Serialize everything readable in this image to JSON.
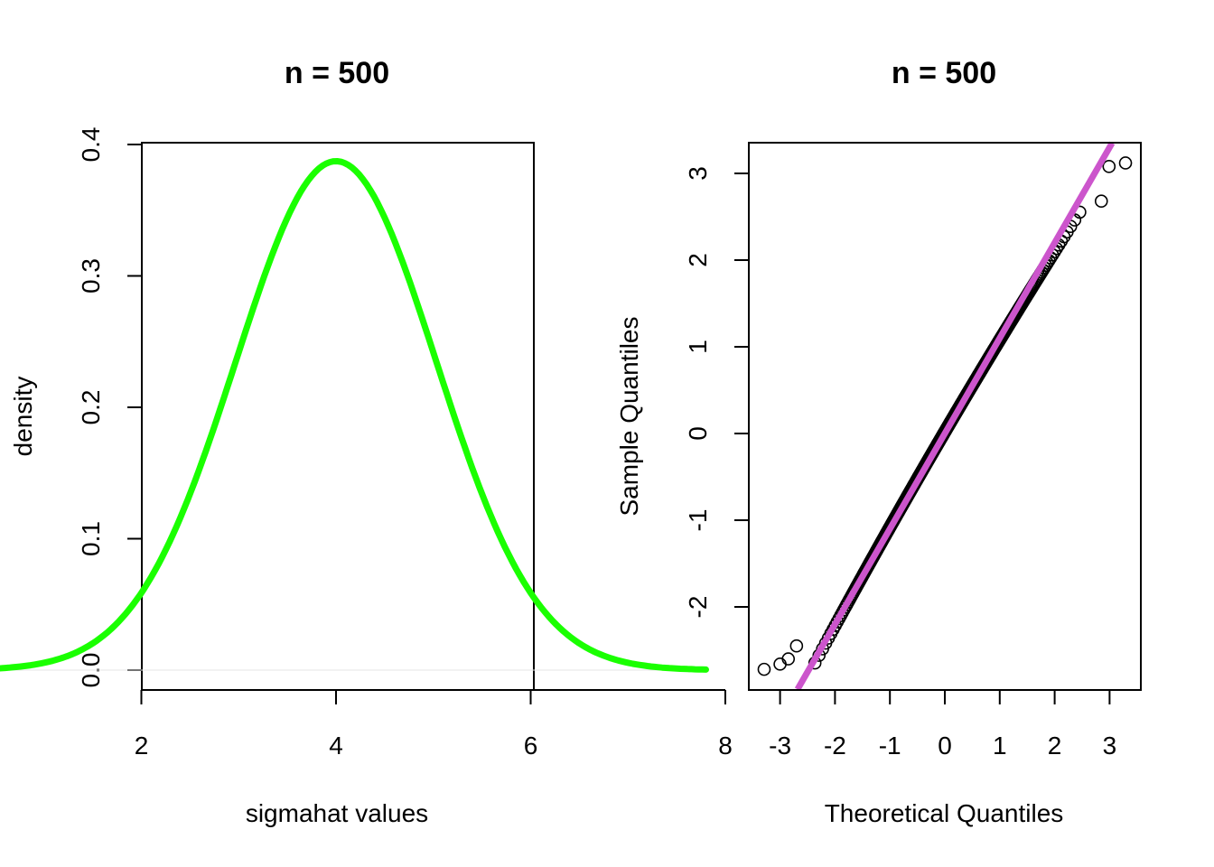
{
  "chart_data": [
    {
      "type": "line",
      "title": "n = 500",
      "xlabel": "sigmahat values",
      "ylabel": "density",
      "xlim": [
        0,
        8
      ],
      "ylim": [
        0,
        0.4
      ],
      "xticks": [
        "2",
        "4",
        "6",
        "8"
      ],
      "yticks": [
        "0.0",
        "0.1",
        "0.2",
        "0.3",
        "0.4"
      ],
      "curve": {
        "distribution": "normal",
        "mean": 4.0,
        "sd": 1.03,
        "x_from": 0.3,
        "x_to": 7.8,
        "color": "#1aff00"
      }
    },
    {
      "type": "scatter",
      "title": "n = 500",
      "xlabel": "Theoretical Quantiles",
      "ylabel": "Sample Quantiles",
      "xlim": [
        -3.5,
        3.7
      ],
      "ylim": [
        -2.95,
        3.35
      ],
      "xticks": [
        "-3",
        "-2",
        "-1",
        "0",
        "1",
        "2",
        "3"
      ],
      "yticks": [
        "-2",
        "-1",
        "0",
        "1",
        "2",
        "3"
      ],
      "n_points": 500,
      "points_extremes": [
        {
          "x": -3.29,
          "y": -2.72
        },
        {
          "x": -3.0,
          "y": -2.66
        },
        {
          "x": -2.85,
          "y": -2.6
        },
        {
          "x": -2.7,
          "y": -2.45
        },
        {
          "x": 2.85,
          "y": 2.68
        },
        {
          "x": 2.99,
          "y": 3.08
        },
        {
          "x": 3.29,
          "y": 3.12
        }
      ],
      "qq_line": {
        "intercept": 0.0,
        "slope": 1.1,
        "color": "#cc55cc"
      }
    }
  ]
}
